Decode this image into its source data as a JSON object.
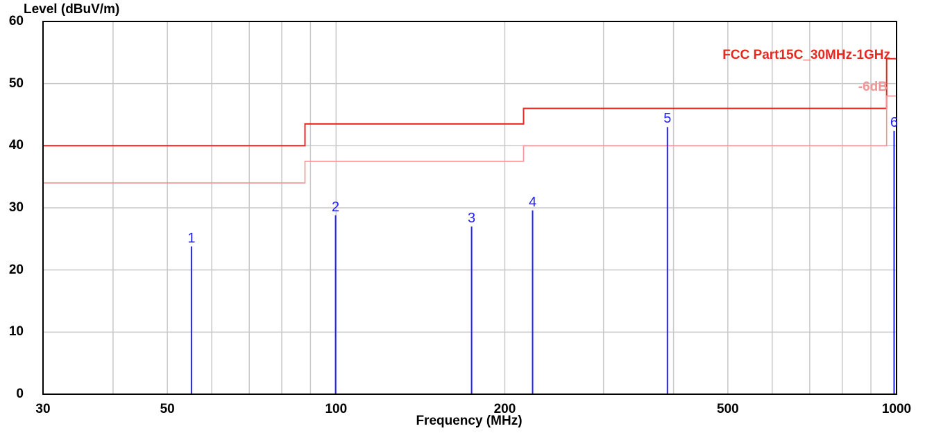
{
  "chart_data": {
    "type": "line",
    "ylabel": "Level (dBuV/m)",
    "xlabel": "Frequency (MHz)",
    "xscale": "log",
    "xlim": [
      30,
      1000
    ],
    "ylim": [
      0,
      60
    ],
    "grid": true,
    "xticks": [
      30,
      50,
      100,
      200,
      500,
      1000
    ],
    "xtick_labels": [
      "30",
      "50",
      "100",
      "200",
      "500",
      "1000"
    ],
    "yticks": [
      0,
      10,
      20,
      30,
      40,
      50,
      60
    ],
    "ytick_labels": [
      "0",
      "10",
      "20",
      "30",
      "40",
      "50",
      "60"
    ],
    "limit_lines": [
      {
        "name": "FCC Part15C_30MHz-1GHz",
        "color": "#e8281e",
        "points": [
          [
            30,
            40
          ],
          [
            88,
            40
          ],
          [
            88,
            43.5
          ],
          [
            216,
            43.5
          ],
          [
            216,
            46
          ],
          [
            960,
            46
          ],
          [
            960,
            54
          ],
          [
            1000,
            54
          ]
        ]
      },
      {
        "name": "-6dB",
        "color": "#f29494",
        "points": [
          [
            30,
            34
          ],
          [
            88,
            34
          ],
          [
            88,
            37.5
          ],
          [
            216,
            37.5
          ],
          [
            216,
            40
          ],
          [
            960,
            40
          ],
          [
            960,
            48
          ],
          [
            1000,
            48
          ]
        ]
      }
    ],
    "markers": {
      "color": "#1f1fff",
      "points": [
        {
          "label": "1",
          "x": 55.2,
          "y": 23.8
        },
        {
          "label": "2",
          "x": 99.8,
          "y": 28.8
        },
        {
          "label": "3",
          "x": 174.5,
          "y": 27.0
        },
        {
          "label": "4",
          "x": 224.2,
          "y": 29.6
        },
        {
          "label": "5",
          "x": 390.1,
          "y": 43.0
        },
        {
          "label": "6",
          "x": 990.0,
          "y": 42.4
        }
      ]
    }
  }
}
